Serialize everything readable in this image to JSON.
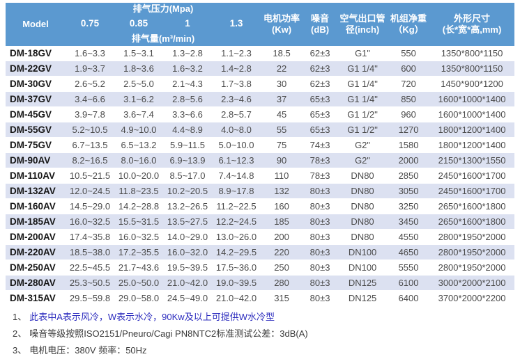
{
  "table": {
    "header": {
      "model": "Model",
      "pressure_group": "排气压力(Mpa)",
      "pressure_values": [
        "0.75",
        "0.85",
        "1",
        "1.3"
      ],
      "flow_group": "排气量(m³/min)",
      "right_columns": [
        {
          "line1": "电机功率",
          "line2": "(Kw)"
        },
        {
          "line1": "噪音",
          "line2": "(dB)"
        },
        {
          "line1": "空气出口管",
          "line2": "径(inch)"
        },
        {
          "line1": "机组净重",
          "line2": "（Kg）"
        },
        {
          "line1": "外形尺寸",
          "line2": "(长*宽*高,mm)"
        }
      ]
    },
    "rows": [
      {
        "model": "DM-18GV",
        "flows": [
          "1.6~3.3",
          "1.5~3.1",
          "1.3~2.8",
          "1.1~2.3"
        ],
        "power": "18.5",
        "noise": "62±3",
        "outlet": "G1\"",
        "weight": "550",
        "dims": "1350*800*1150"
      },
      {
        "model": "DM-22GV",
        "flows": [
          "1.9~3.7",
          "1.8~3.6",
          "1.6~3.2",
          "1.4~2.8"
        ],
        "power": "22",
        "noise": "62±3",
        "outlet": "G1 1/4\"",
        "weight": "600",
        "dims": "1350*800*1150"
      },
      {
        "model": "DM-30GV",
        "flows": [
          "2.6~5.2",
          "2.5~5.0",
          "2.1~4.3",
          "1.7~3.8"
        ],
        "power": "30",
        "noise": "62±3",
        "outlet": "G1 1/4\"",
        "weight": "720",
        "dims": "1450*900*1200"
      },
      {
        "model": "DM-37GV",
        "flows": [
          "3.4~6.6",
          "3.1~6.2",
          "2.8~5.6",
          "2.3~4.6"
        ],
        "power": "37",
        "noise": "65±3",
        "outlet": "G1 1/4\"",
        "weight": "850",
        "dims": "1600*1000*1400"
      },
      {
        "model": "DM-45GV",
        "flows": [
          "3.9~7.8",
          "3.6~7.4",
          "3.3~6.6",
          "2.8~5.7"
        ],
        "power": "45",
        "noise": "65±3",
        "outlet": "G1 1/2\"",
        "weight": "960",
        "dims": "1600*1000*1400"
      },
      {
        "model": "DM-55GV",
        "flows": [
          "5.2~10.5",
          "4.9~10.0",
          "4.4~8.9",
          "4.0~8.0"
        ],
        "power": "55",
        "noise": "65±3",
        "outlet": "G1 1/2\"",
        "weight": "1270",
        "dims": "1800*1200*1400"
      },
      {
        "model": "DM-75GV",
        "flows": [
          "6.7~13.5",
          "6.5~13.2",
          "5.9~11.5",
          "5.0~10.0"
        ],
        "power": "75",
        "noise": "74±3",
        "outlet": "G2\"",
        "weight": "1580",
        "dims": "1800*1200*1400"
      },
      {
        "model": "DM-90AV",
        "flows": [
          "8.2~16.5",
          "8.0~16.0",
          "6.9~13.9",
          "6.1~12.3"
        ],
        "power": "90",
        "noise": "78±3",
        "outlet": "G2\"",
        "weight": "2000",
        "dims": "2150*1300*1550"
      },
      {
        "model": "DM-110AV",
        "flows": [
          "10.5~21.5",
          "10.0~20.0",
          "8.5~17.0",
          "7.4~14.8"
        ],
        "power": "110",
        "noise": "78±3",
        "outlet": "DN80",
        "weight": "2850",
        "dims": "2450*1600*1700"
      },
      {
        "model": "DM-132AV",
        "flows": [
          "12.0~24.5",
          "11.8~23.5",
          "10.2~20.5",
          "8.9~17.8"
        ],
        "power": "132",
        "noise": "80±3",
        "outlet": "DN80",
        "weight": "3050",
        "dims": "2450*1600*1700"
      },
      {
        "model": "DM-160AV",
        "flows": [
          "14.5~29.0",
          "14.2~28.8",
          "13.2~26.5",
          "11.2~22.5"
        ],
        "power": "160",
        "noise": "80±3",
        "outlet": "DN80",
        "weight": "3250",
        "dims": "2650*1600*1800"
      },
      {
        "model": "DM-185AV",
        "flows": [
          "16.0~32.5",
          "15.5~31.5",
          "13.5~27.5",
          "12.2~24.5"
        ],
        "power": "185",
        "noise": "80±3",
        "outlet": "DN80",
        "weight": "3450",
        "dims": "2650*1600*1800"
      },
      {
        "model": "DM-200AV",
        "flows": [
          "17.4~35.8",
          "16.0~32.5",
          "14.0~29.0",
          "13.0~26.0"
        ],
        "power": "200",
        "noise": "80±3",
        "outlet": "DN80",
        "weight": "4550",
        "dims": "2800*1950*2000"
      },
      {
        "model": "DM-220AV",
        "flows": [
          "18.5~38.0",
          "17.2~35.5",
          "16.0~32.0",
          "14.2~29.5"
        ],
        "power": "220",
        "noise": "80±3",
        "outlet": "DN100",
        "weight": "4650",
        "dims": "2800*1950*2000"
      },
      {
        "model": "DM-250AV",
        "flows": [
          "22.5~45.5",
          "21.7~43.6",
          "19.5~39.5",
          "17.5~36.0"
        ],
        "power": "250",
        "noise": "80±3",
        "outlet": "DN100",
        "weight": "5550",
        "dims": "2800*1950*2000"
      },
      {
        "model": "DM-280AV",
        "flows": [
          "25.3~50.5",
          "25.0~50.0",
          "21.0~42.0",
          "19.0~39.5"
        ],
        "power": "280",
        "noise": "80±3",
        "outlet": "DN125",
        "weight": "6100",
        "dims": "3000*2000*2100"
      },
      {
        "model": "DM-315AV",
        "flows": [
          "29.5~59.8",
          "29.0~58.0",
          "24.5~49.0",
          "21.0~42.0"
        ],
        "power": "315",
        "noise": "80±3",
        "outlet": "DN125",
        "weight": "6400",
        "dims": "3700*2000*2200"
      }
    ]
  },
  "notes": [
    {
      "num": "1、",
      "text": "此表中A表示风冷，W表示水冷，90Kw及以上可提供W水冷型",
      "highlight": true
    },
    {
      "num": "2、",
      "text": "噪音等级按照ISO2151/Pneuro/Cagi PN8NTC2标准测试公差：3dB(A)",
      "highlight": false
    },
    {
      "num": "3、",
      "text": "电机电压：380V 频率：50Hz",
      "highlight": false
    }
  ],
  "colors": {
    "header_bg": "#5b99d0",
    "row_alt": "#dce1f1",
    "note_blue": "#2c2cbe"
  }
}
